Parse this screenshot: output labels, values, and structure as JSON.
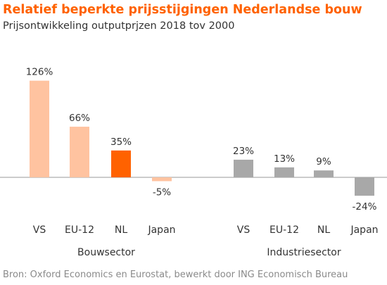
{
  "title": "Relatief beperkte prijsstijgingen Nederlandse bouw",
  "subtitle": "Prijsontwikkeling outputprjzen 2018 tov 2000",
  "source": "Bron: Oxford Economics en Eurostat, bewerkt door ING Economisch Bureau",
  "colors": {
    "title": "#ff6200",
    "bouw_light": "#ffc3a0",
    "bouw_highlight": "#ff6200",
    "industrie": "#a8a8a8",
    "axis": "#999999"
  },
  "chart_data": {
    "type": "bar",
    "title": "Relatief beperkte prijsstijgingen Nederlandse bouw",
    "subtitle": "Prijsontwikkeling outputprjzen 2018 tov 2000",
    "ylim": [
      -30,
      135
    ],
    "grid": false,
    "groups": [
      {
        "name": "Bouwsector",
        "categories": [
          "VS",
          "EU-12",
          "NL",
          "Japan"
        ],
        "values": [
          126,
          66,
          35,
          -5
        ],
        "labels": [
          "126%",
          "66%",
          "35%",
          "-5%"
        ],
        "highlight": "NL"
      },
      {
        "name": "Industriesector",
        "categories": [
          "VS",
          "EU-12",
          "NL",
          "Japan"
        ],
        "values": [
          23,
          13,
          9,
          -24
        ],
        "labels": [
          "23%",
          "13%",
          "9%",
          "-24%"
        ]
      }
    ]
  }
}
